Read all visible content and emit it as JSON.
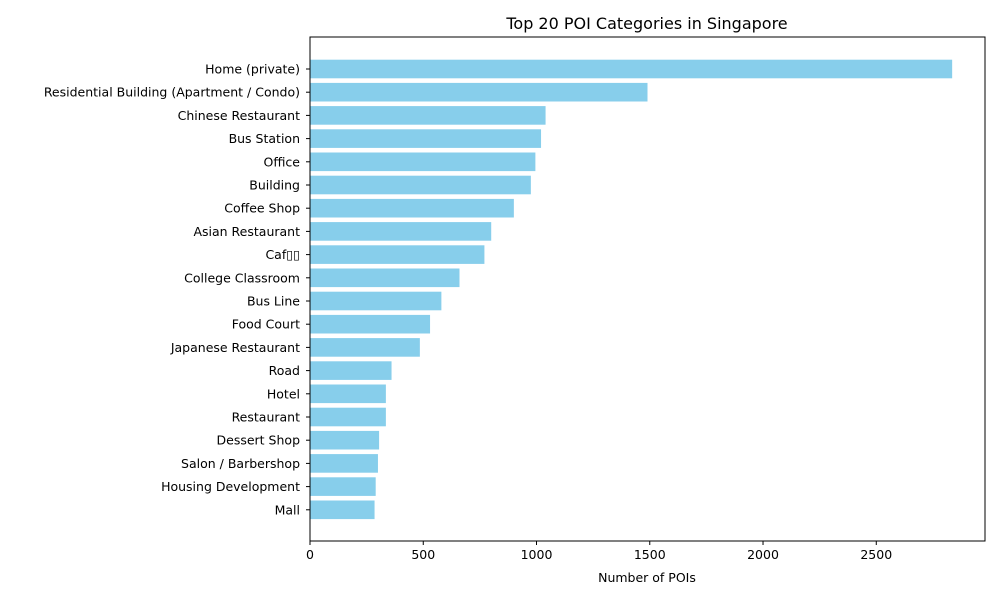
{
  "chart_data": {
    "type": "bar",
    "orientation": "horizontal",
    "title": "Top 20 POI Categories in Singapore",
    "xlabel": "Number of POIs",
    "ylabel": "",
    "xlim": [
      0,
      2980
    ],
    "xticks": [
      0,
      500,
      1000,
      1500,
      2000,
      2500
    ],
    "grid": false,
    "bar_color": "#87CEEB",
    "categories": [
      "Home (private)",
      "Residential Building (Apartment / Condo)",
      "Chinese Restaurant",
      "Bus Station",
      "Office",
      "Building",
      "Coffee Shop",
      "Asian Restaurant",
      "Caf▯▯",
      "College Classroom",
      "Bus Line",
      "Food Court",
      "Japanese Restaurant",
      "Road",
      "Hotel",
      "Restaurant",
      "Dessert Shop",
      "Salon / Barbershop",
      "Housing Development",
      "Mall"
    ],
    "values": [
      2835,
      1490,
      1040,
      1020,
      995,
      975,
      900,
      800,
      770,
      660,
      580,
      530,
      485,
      360,
      335,
      335,
      305,
      300,
      290,
      285
    ]
  }
}
